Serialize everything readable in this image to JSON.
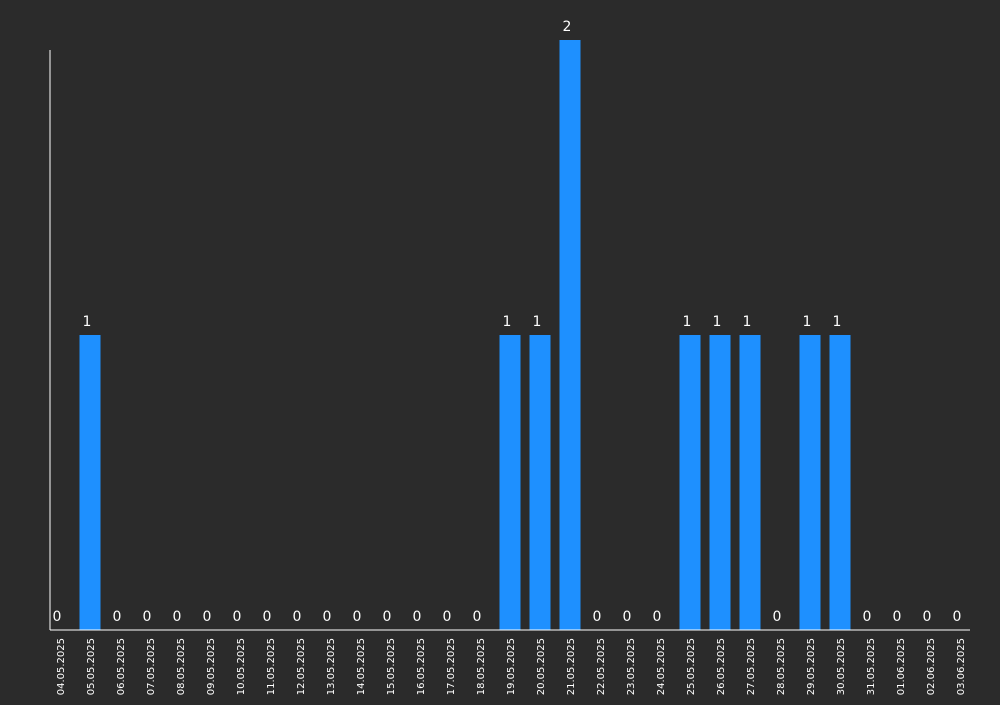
{
  "chart_data": {
    "type": "bar",
    "categories": [
      "04.05.2025",
      "05.05.2025",
      "06.05.2025",
      "07.05.2025",
      "08.05.2025",
      "09.05.2025",
      "10.05.2025",
      "11.05.2025",
      "12.05.2025",
      "13.05.2025",
      "14.05.2025",
      "15.05.2025",
      "16.05.2025",
      "17.05.2025",
      "18.05.2025",
      "19.05.2025",
      "20.05.2025",
      "21.05.2025",
      "22.05.2025",
      "23.05.2025",
      "24.05.2025",
      "25.05.2025",
      "26.05.2025",
      "27.05.2025",
      "28.05.2025",
      "29.05.2025",
      "30.05.2025",
      "31.05.2025",
      "01.06.2025",
      "02.06.2025",
      "03.06.2025"
    ],
    "values": [
      0,
      1,
      0,
      0,
      0,
      0,
      0,
      0,
      0,
      0,
      0,
      0,
      0,
      0,
      0,
      1,
      1,
      2,
      0,
      0,
      0,
      1,
      1,
      1,
      0,
      1,
      1,
      0,
      0,
      0,
      0
    ],
    "title": "",
    "xlabel": "",
    "ylabel": "",
    "ylim": [
      0,
      2
    ],
    "grid": false,
    "legend": "none",
    "data_labels": true
  },
  "colors": {
    "background": "#2b2b2b",
    "bar": "#1e90ff",
    "axis": "#ffffff",
    "text": "#ffffff"
  }
}
